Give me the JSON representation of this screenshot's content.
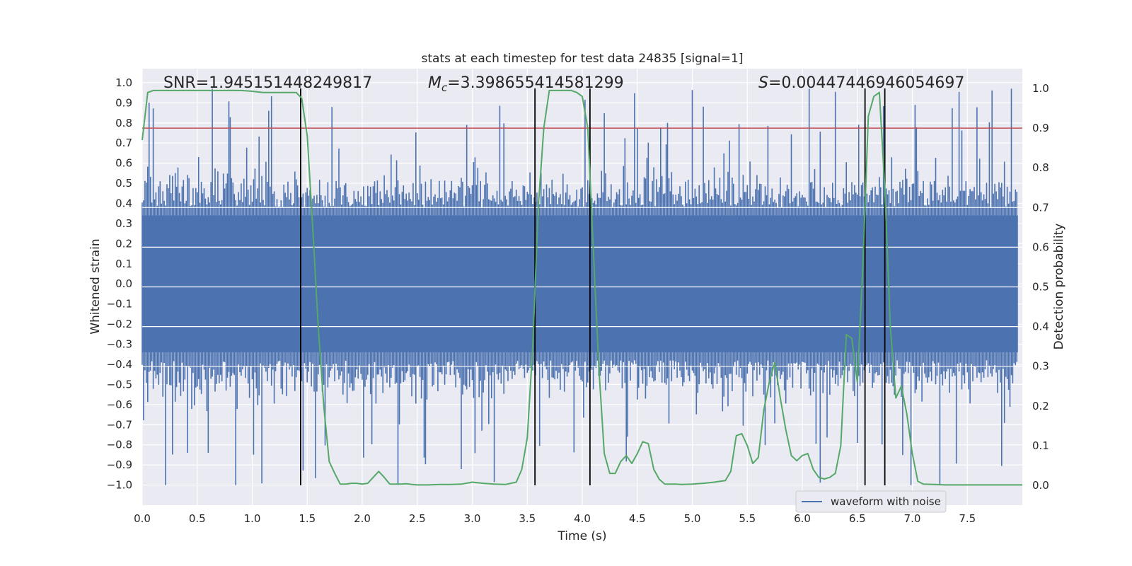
{
  "chart_data": {
    "type": "line",
    "title": "stats at each timestep for test data 24835 [signal=1]",
    "xlabel": "Time (s)",
    "ylabel_left": "Whitened strain",
    "ylabel_right": "Detection probability",
    "xlim": [
      0,
      8
    ],
    "ylim_left": [
      -1.1,
      1.07
    ],
    "ylim_right": [
      -0.05,
      1.05
    ],
    "xticks": [
      0.0,
      0.5,
      1.0,
      1.5,
      2.0,
      2.5,
      3.0,
      3.5,
      4.0,
      4.5,
      5.0,
      5.5,
      6.0,
      6.5,
      7.0,
      7.5
    ],
    "xtick_labels": [
      "0.0",
      "0.5",
      "1.0",
      "1.5",
      "2.0",
      "2.5",
      "3.0",
      "3.5",
      "4.0",
      "4.5",
      "5.0",
      "5.5",
      "6.0",
      "6.5",
      "7.0",
      "7.5"
    ],
    "yticks_left": [
      1.0,
      0.9,
      0.8,
      0.7,
      0.6,
      0.5,
      0.4,
      0.3,
      0.2,
      0.1,
      0.0,
      -0.1,
      -0.2,
      -0.3,
      -0.4,
      -0.5,
      -0.6,
      -0.7,
      -0.8,
      -0.9,
      -1.0
    ],
    "ytick_labels_left": [
      "1.0",
      "0.9",
      "0.8",
      "0.7",
      "0.6",
      "0.5",
      "0.4",
      "0.3",
      "0.2",
      "0.1",
      "0.0",
      "−0.1",
      "−0.2",
      "−0.3",
      "−0.4",
      "−0.5",
      "−0.6",
      "−0.7",
      "−0.8",
      "−0.9",
      "−1.0"
    ],
    "yticks_right": [
      0.0,
      0.1,
      0.2,
      0.3,
      0.4,
      0.5,
      0.6,
      0.7,
      0.8,
      0.9,
      1.0
    ],
    "ytick_labels_right": [
      "0.0",
      "0.1",
      "0.2",
      "0.3",
      "0.4",
      "0.5",
      "0.6",
      "0.7",
      "0.8",
      "0.9",
      "1.0"
    ],
    "annotations": {
      "snr": "SNR=1.945151448249817",
      "mc_symbol": "M",
      "mc_sub": "c",
      "mc_value": "=3.398655414581299",
      "s_symbol": "S",
      "s_value": "=0.00447446946054697"
    },
    "legend": {
      "label": "waveform with noise",
      "position": "lower-right"
    },
    "threshold": {
      "value": 0.9,
      "axis": "right",
      "color": "#c44e52"
    },
    "vlines_s": [
      1.44,
      3.57,
      4.07,
      6.57,
      6.75
    ],
    "waveform": {
      "name": "waveform with noise",
      "color": "#4c72b0",
      "t_start": 0.0,
      "t_end": 8.0,
      "core_envelope": 0.38,
      "note": "dense noisy strain trace; max peaks near 0.97, min near -1.0"
    },
    "detection_probability": {
      "name": "detection probability",
      "color": "#55a868",
      "t": [
        0.0,
        0.05,
        0.1,
        0.2,
        0.3,
        0.5,
        0.7,
        0.9,
        1.0,
        1.1,
        1.2,
        1.3,
        1.4,
        1.45,
        1.5,
        1.55,
        1.6,
        1.65,
        1.7,
        1.75,
        1.8,
        1.85,
        1.9,
        1.95,
        2.0,
        2.05,
        2.1,
        2.15,
        2.2,
        2.25,
        2.3,
        2.35,
        2.4,
        2.45,
        2.5,
        2.6,
        2.7,
        2.8,
        2.9,
        3.0,
        3.1,
        3.2,
        3.3,
        3.4,
        3.45,
        3.5,
        3.55,
        3.6,
        3.65,
        3.7,
        3.75,
        3.8,
        3.85,
        3.9,
        3.95,
        4.0,
        4.05,
        4.1,
        4.15,
        4.2,
        4.25,
        4.3,
        4.35,
        4.4,
        4.45,
        4.5,
        4.55,
        4.6,
        4.65,
        4.7,
        4.75,
        4.8,
        4.85,
        4.9,
        5.0,
        5.1,
        5.2,
        5.3,
        5.35,
        5.4,
        5.45,
        5.5,
        5.55,
        5.6,
        5.65,
        5.7,
        5.75,
        5.8,
        5.85,
        5.9,
        5.95,
        6.0,
        6.05,
        6.1,
        6.15,
        6.2,
        6.25,
        6.3,
        6.35,
        6.4,
        6.45,
        6.5,
        6.55,
        6.6,
        6.65,
        6.7,
        6.75,
        6.8,
        6.85,
        6.9,
        6.95,
        7.0,
        7.05,
        7.1,
        7.2,
        7.3,
        7.4,
        7.5,
        7.6,
        7.7,
        7.8,
        7.9,
        8.0
      ],
      "p": [
        0.87,
        0.99,
        0.995,
        0.995,
        0.995,
        0.995,
        0.995,
        0.995,
        0.993,
        0.99,
        0.99,
        0.99,
        0.99,
        0.975,
        0.88,
        0.65,
        0.4,
        0.2,
        0.06,
        0.03,
        0.003,
        0.003,
        0.005,
        0.005,
        0.003,
        0.005,
        0.02,
        0.035,
        0.02,
        0.003,
        0.003,
        0.003,
        0.004,
        0.002,
        0.001,
        0.001,
        0.002,
        0.002,
        0.003,
        0.008,
        0.005,
        0.003,
        0.002,
        0.008,
        0.04,
        0.12,
        0.35,
        0.7,
        0.9,
        0.995,
        0.995,
        0.995,
        0.995,
        0.995,
        0.99,
        0.98,
        0.9,
        0.6,
        0.3,
        0.08,
        0.03,
        0.03,
        0.06,
        0.075,
        0.055,
        0.08,
        0.11,
        0.105,
        0.04,
        0.015,
        0.003,
        0.003,
        0.003,
        0.002,
        0.003,
        0.005,
        0.008,
        0.012,
        0.035,
        0.125,
        0.13,
        0.1,
        0.055,
        0.07,
        0.19,
        0.26,
        0.31,
        0.22,
        0.14,
        0.075,
        0.062,
        0.075,
        0.08,
        0.04,
        0.02,
        0.016,
        0.02,
        0.03,
        0.1,
        0.38,
        0.37,
        0.26,
        0.55,
        0.93,
        0.98,
        0.99,
        0.75,
        0.4,
        0.22,
        0.25,
        0.18,
        0.08,
        0.01,
        0.003,
        0.002,
        0.001,
        0.001,
        0.001,
        0.001,
        0.001,
        0.001,
        0.001,
        0.001
      ]
    }
  }
}
